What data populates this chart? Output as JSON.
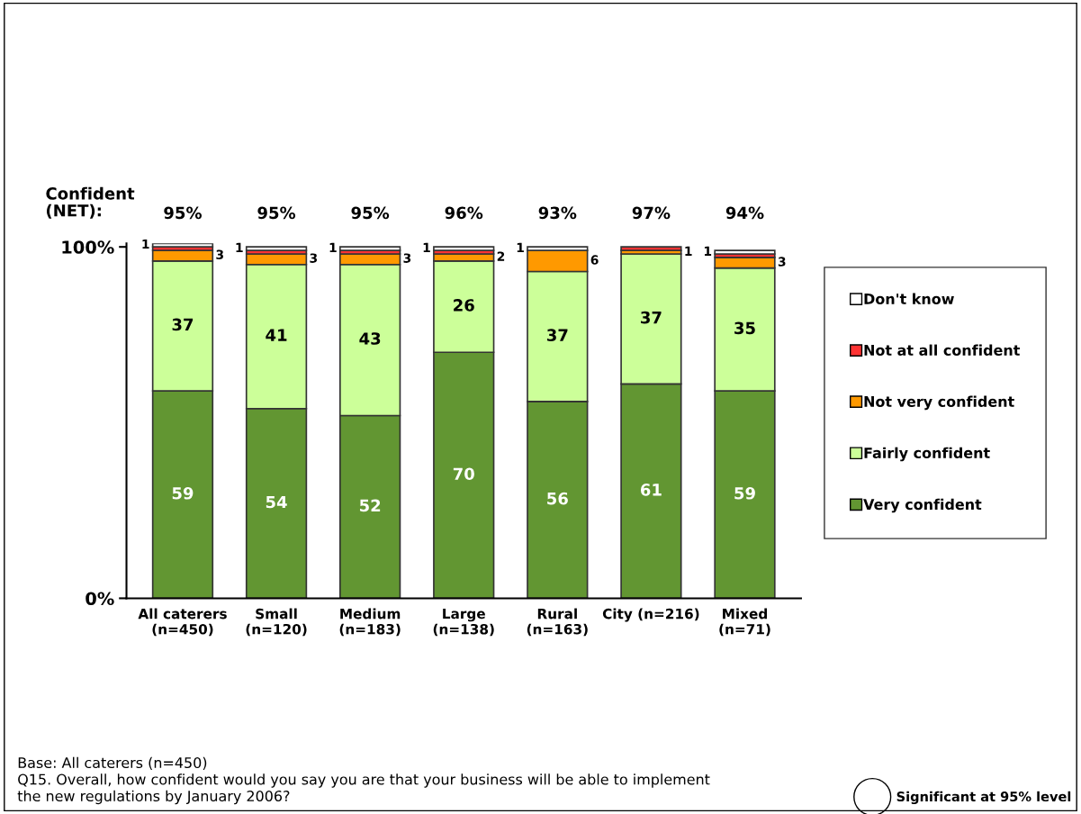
{
  "chart_data": {
    "type": "bar",
    "stacked": true,
    "categories": [
      "All caterers\n(n=450)",
      "Small\n(n=120)",
      "Medium\n(n=183)",
      "Large\n(n=138)",
      "Rural\n(n=163)",
      "City (n=216)",
      "Mixed\n(n=71)"
    ],
    "series": [
      {
        "name": "Very confident",
        "color": "#629632",
        "values": [
          59,
          54,
          52,
          70,
          56,
          61,
          59
        ],
        "value_labels": [
          "59",
          "54",
          "52",
          "70",
          "56",
          "61",
          "59"
        ]
      },
      {
        "name": "Fairly confident",
        "color": "#ccff99",
        "values": [
          37,
          41,
          43,
          26,
          37,
          37,
          35
        ],
        "value_labels": [
          "37",
          "41",
          "43",
          "26",
          "37",
          "37",
          "35"
        ]
      },
      {
        "name": "Not very confident",
        "color": "#ff9900",
        "values": [
          3,
          3,
          3,
          2,
          6,
          1,
          3
        ],
        "value_labels": [
          "3",
          "3",
          "3",
          "2",
          "6",
          "1",
          "3"
        ]
      },
      {
        "name": "Not at all confident",
        "color": "#ff3333",
        "values": [
          1,
          1,
          1,
          1,
          null,
          1,
          1
        ]
      },
      {
        "name": "Don't know",
        "color": "#ffffff",
        "values": [
          1,
          1,
          1,
          1,
          1,
          null,
          1
        ],
        "value_labels": [
          "1",
          "1",
          "1",
          "1",
          "1",
          null,
          "1"
        ]
      }
    ],
    "ylim": [
      0,
      101
    ],
    "yticks": [
      {
        "value": 0,
        "label": "0%"
      },
      {
        "value": 100,
        "label": "100%"
      }
    ],
    "legend": "right",
    "grid": false,
    "annotations": [
      "Confident\n(NET):",
      "95%",
      "95%",
      "95%",
      "96%",
      "93%",
      "97%",
      "94%",
      "Base: All caterers (n=450)\nQ15. Overall, how confident would you say you are that your business will be able to implement\nthe new regulations by January 2006?",
      "Significant at 95% level"
    ]
  }
}
